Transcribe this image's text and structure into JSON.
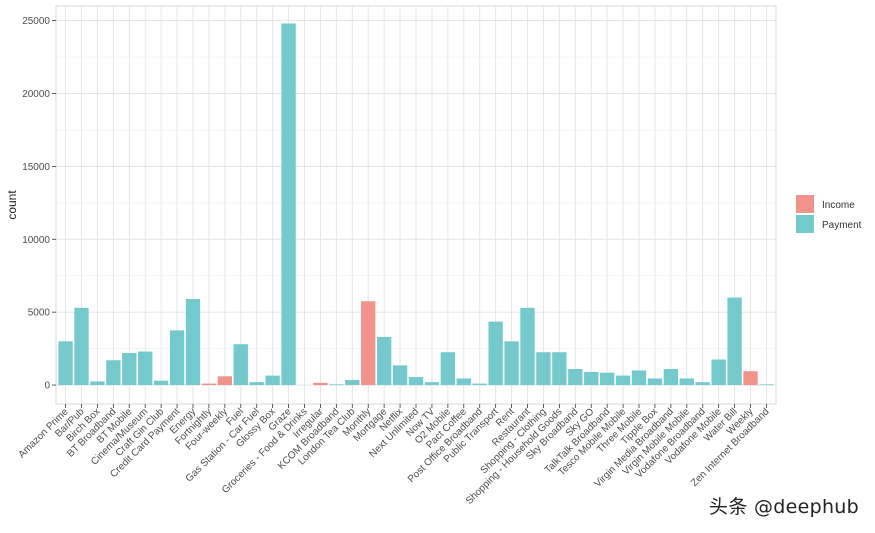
{
  "chart_data": {
    "type": "bar",
    "xlabel": "",
    "ylabel": "count",
    "ylim": [
      -1300,
      26000
    ],
    "yticks": [
      0,
      5000,
      10000,
      15000,
      20000,
      25000
    ],
    "grid": true,
    "legend_position": "right",
    "legend": [
      {
        "name": "Income",
        "color": "#F0938A"
      },
      {
        "name": "Payment",
        "color": "#74C9CD"
      }
    ],
    "categories": [
      "Amazon Prime",
      "Bar/Pub",
      "Birch Box",
      "BT Broadband",
      "BT Mobile",
      "Cinema/Museum",
      "Craft Gin Club",
      "Credit Card Payment",
      "Energy",
      "Fortnightly",
      "Four-weekly",
      "Fuel",
      "Gas Station - Car Fuel",
      "Glossy Box",
      "Graze",
      "Groceries - Food & Drinks",
      "Irregular",
      "KCOM Broadband",
      "London Tea Club",
      "Monthly",
      "Mortgage",
      "Netflix",
      "Next Unlimited",
      "Now TV",
      "O2 Mobile",
      "Pact Coffee",
      "Post Office Broadband",
      "Public Transport",
      "Rent",
      "Restaurant",
      "Shopping - Clothing",
      "Shopping - Household Goods",
      "Sky Broadband",
      "Sky GO",
      "TalkTalk Broadband",
      "Tesco Mobile Mobile",
      "Three Mobile",
      "Tipple Box",
      "Virgin Media Broadband",
      "Virgin Mobile Mobile",
      "Vodafone Broadband",
      "Vodafone Mobile",
      "Water Bill",
      "Weekly",
      "Zen Internet Broadband"
    ],
    "series": [
      {
        "name": "Income",
        "values": [
          0,
          0,
          0,
          0,
          0,
          0,
          0,
          0,
          0,
          100,
          600,
          0,
          0,
          0,
          0,
          0,
          150,
          0,
          0,
          5750,
          0,
          0,
          0,
          0,
          0,
          0,
          0,
          0,
          0,
          0,
          0,
          0,
          0,
          0,
          0,
          0,
          0,
          0,
          0,
          0,
          0,
          0,
          0,
          950,
          0
        ]
      },
      {
        "name": "Payment",
        "values": [
          3000,
          5300,
          250,
          1700,
          2200,
          2300,
          300,
          3750,
          5900,
          0,
          0,
          2800,
          200,
          650,
          24800,
          0,
          0,
          50,
          350,
          0,
          3300,
          1350,
          550,
          200,
          2250,
          450,
          100,
          4350,
          3000,
          5300,
          2250,
          2250,
          1100,
          900,
          850,
          650,
          1000,
          450,
          1100,
          450,
          200,
          1750,
          6000,
          0,
          50
        ]
      }
    ]
  },
  "watermark": "头条 @deephub"
}
